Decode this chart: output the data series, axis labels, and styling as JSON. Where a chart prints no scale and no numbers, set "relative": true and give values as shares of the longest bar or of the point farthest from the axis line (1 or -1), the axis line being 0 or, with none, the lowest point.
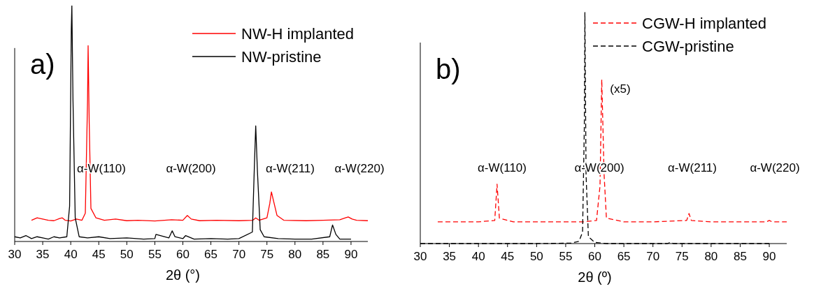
{
  "chart_data": [
    {
      "type": "line",
      "relative": true,
      "xlabel": "2θ (°)",
      "xlim": [
        30,
        93
      ],
      "xticks": [
        30,
        35,
        40,
        45,
        50,
        55,
        60,
        65,
        70,
        75,
        80,
        85,
        90
      ],
      "legend": "top right",
      "grid": false,
      "marker": "none",
      "line_style": "solid",
      "annotations": [
        "a)",
        "α-W(110)",
        "α-W(200)",
        "α-W(211)",
        "α-W(220)"
      ],
      "series": [
        {
          "name": "NW-H implanted",
          "color": "#ff0000",
          "x": [
            33,
            34,
            35,
            36,
            37,
            38,
            38.5,
            39,
            40,
            41,
            42,
            42.6,
            43.0,
            43.1,
            43.3,
            43.6,
            44.5,
            46,
            48,
            50,
            52,
            55,
            58,
            60,
            60.8,
            61.5,
            63,
            66,
            70,
            72.5,
            73,
            73.6,
            75,
            75.5,
            75.8,
            76.2,
            76.8,
            78,
            82,
            85,
            88,
            89,
            89.5,
            90.2,
            91,
            93
          ],
          "values": [
            0.09,
            0.1,
            0.095,
            0.09,
            0.088,
            0.097,
            0.1,
            0.09,
            0.087,
            0.095,
            0.09,
            0.12,
            0.6,
            0.83,
            0.5,
            0.14,
            0.1,
            0.09,
            0.095,
            0.088,
            0.09,
            0.087,
            0.092,
            0.09,
            0.11,
            0.095,
            0.088,
            0.09,
            0.088,
            0.09,
            0.1,
            0.09,
            0.1,
            0.16,
            0.21,
            0.17,
            0.11,
            0.09,
            0.088,
            0.09,
            0.092,
            0.1,
            0.104,
            0.095,
            0.09,
            0.088
          ]
        },
        {
          "name": "NW-pristine",
          "color": "#000000",
          "x": [
            30,
            31,
            32,
            33,
            34,
            35,
            36,
            37,
            38,
            39.3,
            39.8,
            40.1,
            40.2,
            40.4,
            40.8,
            41.5,
            43,
            45,
            47,
            50,
            53,
            55,
            55.2,
            57.5,
            58.1,
            58.6,
            60,
            60.5,
            62,
            65,
            68,
            70,
            72.4,
            72.8,
            73,
            73.3,
            73.8,
            74.5,
            77,
            80,
            83,
            86.2,
            86.7,
            87.3,
            88,
            90
          ],
          "values": [
            0.02,
            0.015,
            0.025,
            0.012,
            0.02,
            0.015,
            0.01,
            0.02,
            0.015,
            0.02,
            0.15,
            0.9,
            1,
            0.6,
            0.1,
            0.02,
            0.015,
            0.02,
            0.012,
            0.015,
            0.01,
            0.012,
            0.03,
            0.015,
            0.045,
            0.02,
            0.012,
            0.025,
            0.01,
            0.012,
            0.01,
            0.012,
            0.04,
            0.35,
            0.49,
            0.3,
            0.05,
            0.02,
            0.012,
            0.01,
            0.01,
            0.02,
            0.07,
            0.03,
            0.01,
            0.01
          ]
        }
      ]
    },
    {
      "type": "line",
      "relative": true,
      "xlabel": "2θ (º)",
      "xlim": [
        30,
        93
      ],
      "xticks": [
        30,
        35,
        40,
        45,
        50,
        55,
        60,
        65,
        70,
        75,
        80,
        85,
        90
      ],
      "legend": "top right",
      "grid": false,
      "marker": "none",
      "line_style": "dashed",
      "annotations": [
        "b)",
        "α-W(110)",
        "α-W(200)",
        "α-W(211)",
        "α-W(220)",
        "(x5)"
      ],
      "series": [
        {
          "name": "CGW-H implanted",
          "color": "#ff0000",
          "x": [
            33,
            36,
            40,
            42.8,
            43.2,
            43.6,
            46,
            50,
            55,
            58,
            60.3,
            60.9,
            61.2,
            61.6,
            62,
            65,
            70,
            75.8,
            76.2,
            76.6,
            80,
            85,
            89.5,
            90,
            90.5,
            93
          ],
          "values": [
            0.094,
            0.094,
            0.094,
            0.1,
            0.257,
            0.11,
            0.094,
            0.094,
            0.094,
            0.094,
            0.1,
            0.25,
            0.71,
            0.3,
            0.11,
            0.094,
            0.094,
            0.1,
            0.13,
            0.1,
            0.094,
            0.094,
            0.094,
            0.1,
            0.094,
            0.094
          ]
        },
        {
          "name": "CGW-pristine",
          "color": "#000000",
          "x": [
            30,
            40,
            50,
            56,
            57.3,
            57.9,
            58.2,
            58.3,
            58.5,
            58.9,
            60,
            62,
            72.5,
            73,
            73.5,
            80,
            90
          ],
          "values": [
            0,
            0,
            0,
            0.002,
            0.01,
            0.05,
            0.5,
            1,
            0.3,
            0.03,
            0.005,
            0,
            0,
            0.005,
            0,
            0,
            0
          ]
        }
      ]
    }
  ]
}
